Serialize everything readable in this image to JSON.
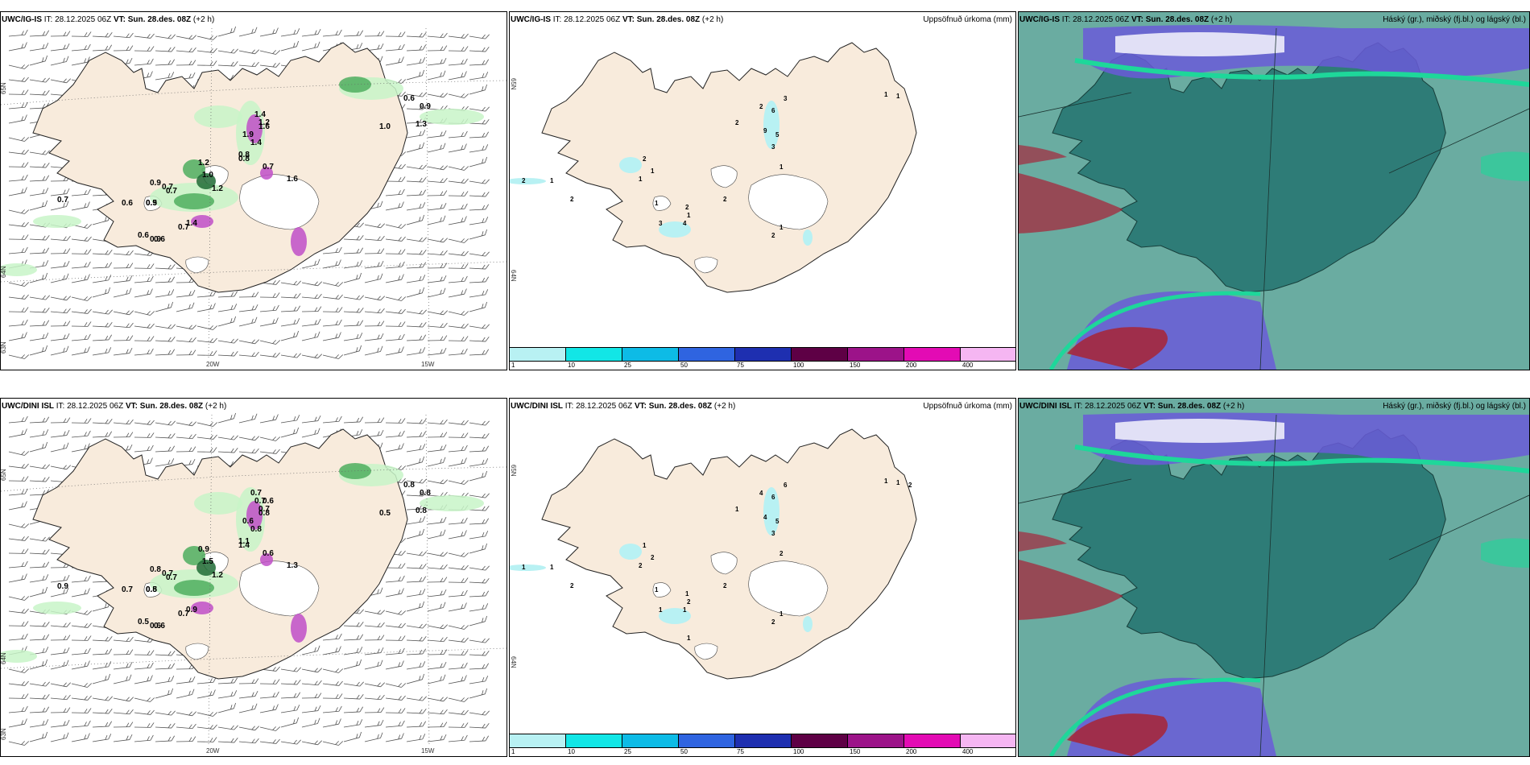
{
  "colors": {
    "land": "#f8ebdc",
    "land_cloud": "#2e7c77",
    "sea_cloud": "#6aaca1",
    "precip_light": "#c8f5c8",
    "precip_mid": "#4fae5f",
    "precip_dark": "#1e6b35",
    "snow": "#c04fc8",
    "accum_light": "#b8f1f3",
    "cloud_high": "#6a5bd8",
    "cloud_low": "#a5283c",
    "cloud_edge": "#1ed79a"
  },
  "panels": [
    {
      "model": "UWC/IG-IS",
      "it_label": "IT:",
      "it_value": "28.12.2025 06Z",
      "vt_label": "VT:",
      "vt_value": "Sun. 28.des. 08Z",
      "lead": "(+2 h)",
      "type": "precip-wind",
      "lat_labels": [
        "65N",
        "64N",
        "63N"
      ],
      "lon_labels": [
        "20W",
        "15W"
      ],
      "values": [
        "0.7",
        "0.6",
        "0.5",
        "0.9",
        "0.7",
        "0.7",
        "0.9",
        "1.2",
        "1.0",
        "1.2",
        "0.8",
        "0.9",
        "0.6",
        "0.6",
        "0.7",
        "1.4",
        "1.9",
        "1.2",
        "1.4",
        "1.4",
        "1.6",
        "0.8",
        "0.7",
        "1.0",
        "1.3",
        "0.9",
        "0.6",
        "1.6"
      ]
    },
    {
      "model": "UWC/IG-IS",
      "it_label": "IT:",
      "it_value": "28.12.2025 06Z",
      "vt_label": "VT:",
      "vt_value": "Sun. 28.des. 08Z",
      "lead": "(+2 h)",
      "type": "accumulated",
      "right_title": "Uppsöfnuð úrkoma (mm)",
      "lat_labels": [
        "65N",
        "64N"
      ],
      "values": [
        "2",
        "1",
        "2",
        "2",
        "1",
        "1",
        "1",
        "3",
        "4",
        "2",
        "1",
        "2",
        "3",
        "6",
        "9",
        "5",
        "3",
        "1",
        "2",
        "2",
        "1",
        "2",
        "1",
        "1"
      ]
    },
    {
      "model": "UWC/IG-IS",
      "it_label": "IT:",
      "it_value": "28.12.2025 06Z",
      "vt_label": "VT:",
      "vt_value": "Sun. 28.des. 08Z",
      "lead": "(+2 h)",
      "type": "clouds",
      "right_title": "Háský (gr.), miðský (fj.bl.) og lágský (bl.)"
    },
    {
      "model": "UWC/DINI ISL",
      "it_label": "IT:",
      "it_value": "28.12.2025 06Z",
      "vt_label": "VT:",
      "vt_value": "Sun. 28.des. 08Z",
      "lead": "(+2 h)",
      "type": "precip-wind",
      "lat_labels": [
        "65N",
        "64N",
        "63N"
      ],
      "lon_labels": [
        "20W",
        "15W"
      ],
      "values": [
        "0.9",
        "0.7",
        "0.5",
        "0.8",
        "0.7",
        "0.7",
        "0.8",
        "0.9",
        "1.5",
        "1.2",
        "1.4",
        "0.6",
        "0.5",
        "0.6",
        "0.7",
        "0.9",
        "0.6",
        "0.7",
        "0.8",
        "0.7",
        "0.8",
        "1.1",
        "0.6",
        "0.5",
        "0.8",
        "0.8",
        "0.8",
        "1.3",
        "0.6",
        "0.7"
      ]
    },
    {
      "model": "UWC/DINI ISL",
      "it_label": "IT:",
      "it_value": "28.12.2025 06Z",
      "vt_label": "VT:",
      "vt_value": "Sun. 28.des. 08Z",
      "lead": "(+2 h)",
      "type": "accumulated",
      "right_title": "Uppsöfnuð úrkoma (mm)",
      "lat_labels": [
        "65N",
        "64N"
      ],
      "values": [
        "1",
        "1",
        "2",
        "1",
        "2",
        "2",
        "1",
        "1",
        "1",
        "1",
        "2",
        "2",
        "6",
        "6",
        "4",
        "5",
        "3",
        "2",
        "4",
        "1",
        "1",
        "2",
        "1",
        "1",
        "2",
        "1"
      ]
    },
    {
      "model": "UWC/DINI ISL",
      "it_label": "IT:",
      "it_value": "28.12.2025 06Z",
      "vt_label": "VT:",
      "vt_value": "Sun. 28.des. 08Z",
      "lead": "(+2 h)",
      "type": "clouds",
      "right_title": "Háský (gr.), miðský (fj.bl.) og lágský (bl.)"
    }
  ],
  "colorbar": {
    "ticks": [
      "1",
      "10",
      "25",
      "50",
      "75",
      "100",
      "150",
      "200",
      "400"
    ],
    "colors": [
      "#b8f1f3",
      "#12e6e6",
      "#0dbbe6",
      "#2f64e0",
      "#1e2fb0",
      "#5e0045",
      "#9c1389",
      "#e30bb4",
      "#f5b6f2"
    ]
  }
}
